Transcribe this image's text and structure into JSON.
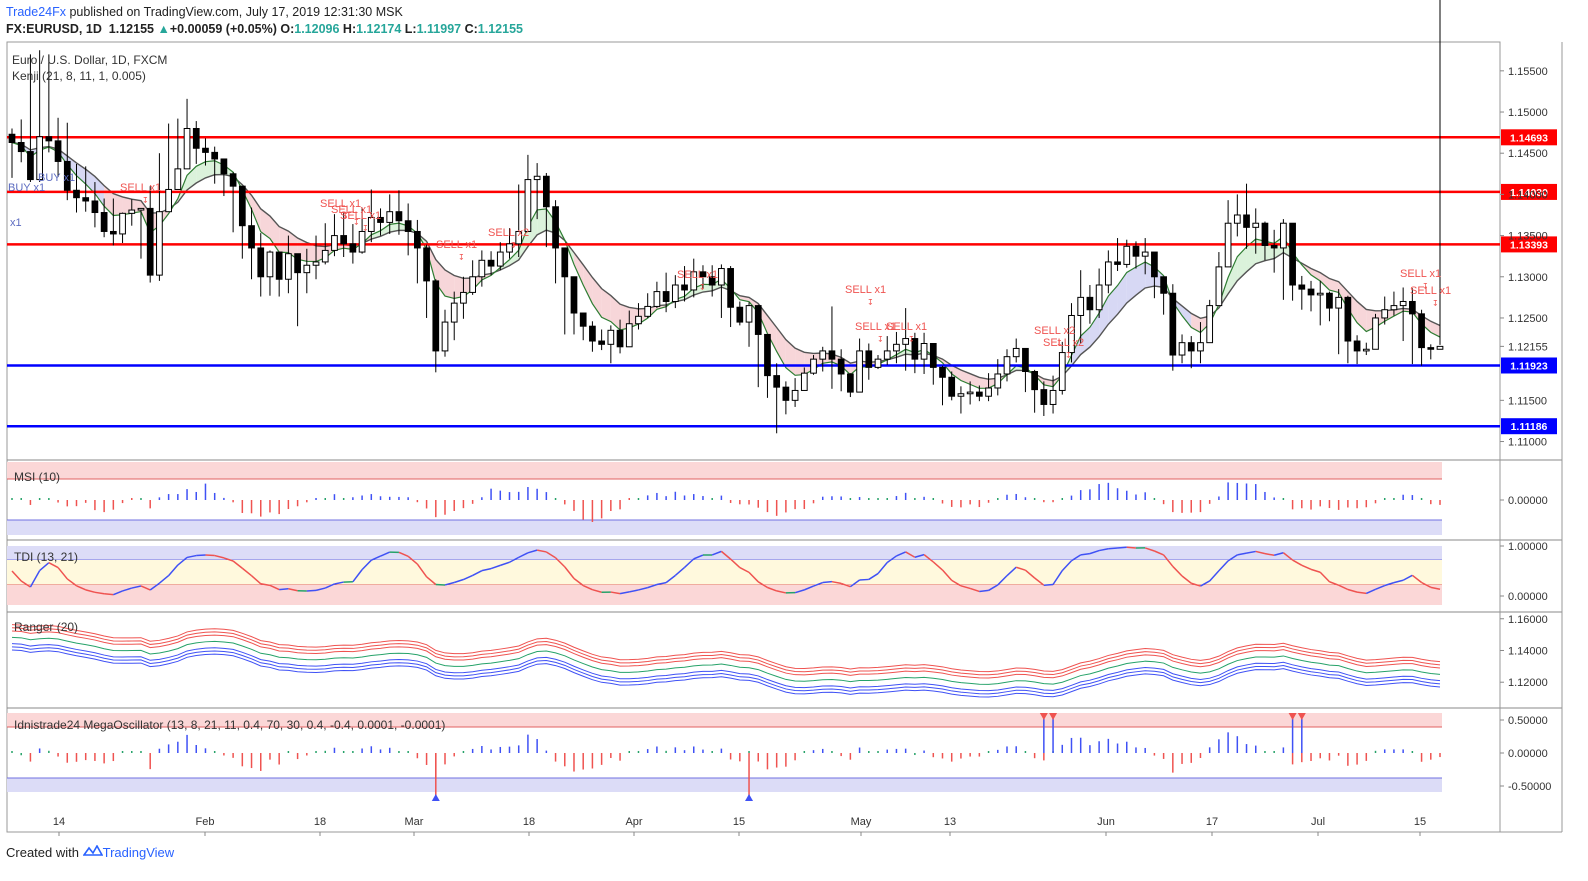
{
  "header": {
    "publisher": "Trade24Fx",
    "published_text": "published on TradingView.com, July 17, 2019 12:31:30 MSK",
    "symbol": "FX:EURUSD, 1D",
    "last": "1.12155",
    "change_arrow": "▲",
    "change": "+0.00059 (+0.05%)",
    "o_label": "O:",
    "o": "1.12096",
    "h_label": "H:",
    "h": "1.12174",
    "l_label": "L:",
    "l": "1.11997",
    "c_label": "C:",
    "c": "1.12155"
  },
  "footer": {
    "created_with": "Created with",
    "brand": "TradingView"
  },
  "colors": {
    "up": "#26a69a",
    "candle_down": "#000000",
    "resistance": "#ff0000",
    "support": "#0000ff",
    "accent": "#2962ff"
  },
  "chart_data": [
    {
      "type": "candlestick",
      "title": "Euro / U.S. Dollar, 1D, FXCM",
      "indicator": "Kenji (21, 8, 11, 1, 0.005)",
      "ylim": [
        1.108,
        1.1585
      ],
      "y_ticks": [
        "1.15500",
        "1.15000",
        "1.14500",
        "1.14000",
        "1.13500",
        "1.13000",
        "1.12500",
        "1.12155",
        "1.11500",
        "1.11000"
      ],
      "x_labels": [
        "14",
        "Feb",
        "18",
        "Mar",
        "18",
        "Apr",
        "15",
        "May",
        "13",
        "Jun",
        "17",
        "Jul",
        "15"
      ],
      "last_price": "1.12155",
      "horizontal_levels": [
        {
          "label": "1.14693",
          "value": 1.14693,
          "color": "#ff0000"
        },
        {
          "label": "1.14030",
          "value": 1.1403,
          "color": "#ff0000"
        },
        {
          "label": "1.13393",
          "value": 1.13393,
          "color": "#ff0000"
        },
        {
          "label": "1.11923",
          "value": 1.11923,
          "color": "#0000ff"
        },
        {
          "label": "1.11186",
          "value": 1.11186,
          "color": "#0000ff"
        }
      ],
      "annotations": [
        {
          "text": "BUY x1",
          "type": "buy"
        },
        {
          "text": "BUY x1",
          "type": "buy"
        },
        {
          "text": "x1",
          "type": "buy"
        },
        {
          "text": "SELL x1",
          "type": "sell"
        },
        {
          "text": "SELL x1",
          "type": "sell"
        },
        {
          "text": "SELL x1",
          "type": "sell"
        },
        {
          "text": "SELL x1",
          "type": "sell"
        },
        {
          "text": "SELL x1",
          "type": "sell"
        },
        {
          "text": "SELL x2",
          "type": "sell"
        },
        {
          "text": "SELL x1",
          "type": "sell"
        },
        {
          "text": "SELL x1",
          "type": "sell"
        },
        {
          "text": "SELL x1",
          "type": "sell"
        },
        {
          "text": "SELL x1",
          "type": "sell"
        },
        {
          "text": "SELL x2",
          "type": "sell"
        },
        {
          "text": "SELL x2",
          "type": "sell"
        },
        {
          "text": "SELL x1",
          "type": "sell"
        },
        {
          "text": "SELL x1",
          "type": "sell"
        }
      ],
      "closes": [
        1.1463,
        1.1452,
        1.1418,
        1.147,
        1.1465,
        1.144,
        1.1405,
        1.1396,
        1.1392,
        1.1378,
        1.1355,
        1.1352,
        1.1377,
        1.1381,
        1.1383,
        1.1302,
        1.1379,
        1.1406,
        1.1431,
        1.148,
        1.1456,
        1.1451,
        1.1443,
        1.1425,
        1.141,
        1.1362,
        1.1335,
        1.13,
        1.133,
        1.1297,
        1.1328,
        1.1305,
        1.1314,
        1.1318,
        1.1332,
        1.135,
        1.134,
        1.133,
        1.1355,
        1.1372,
        1.1366,
        1.1379,
        1.1368,
        1.1355,
        1.1335,
        1.1295,
        1.121,
        1.1245,
        1.1268,
        1.1281,
        1.13,
        1.132,
        1.1313,
        1.133,
        1.134,
        1.1355,
        1.1418,
        1.1422,
        1.1385,
        1.1335,
        1.13,
        1.1256,
        1.124,
        1.1222,
        1.1218,
        1.1235,
        1.1215,
        1.1243,
        1.1252,
        1.1264,
        1.1282,
        1.127,
        1.129,
        1.1284,
        1.1306,
        1.13,
        1.129,
        1.131,
        1.1263,
        1.1245,
        1.1265,
        1.123,
        1.118,
        1.1166,
        1.115,
        1.1162,
        1.1183,
        1.12,
        1.121,
        1.12,
        1.1182,
        1.116,
        1.121,
        1.119,
        1.12,
        1.121,
        1.1218,
        1.1225,
        1.12,
        1.1219,
        1.119,
        1.1178,
        1.1155,
        1.1158,
        1.116,
        1.1155,
        1.1165,
        1.1182,
        1.1203,
        1.1213,
        1.1185,
        1.1163,
        1.1145,
        1.1162,
        1.1208,
        1.1253,
        1.1275,
        1.126,
        1.129,
        1.1318,
        1.1315,
        1.1337,
        1.1325,
        1.133,
        1.13,
        1.128,
        1.1205,
        1.122,
        1.121,
        1.122,
        1.1265,
        1.1312,
        1.1365,
        1.1375,
        1.136,
        1.1365,
        1.1338,
        1.1335,
        1.1365,
        1.129,
        1.1285,
        1.1278,
        1.128,
        1.1262,
        1.1275,
        1.1222,
        1.121,
        1.1212,
        1.125,
        1.126,
        1.1265,
        1.127,
        1.1255,
        1.1214,
        1.1212,
        1.12155
      ],
      "highs": [
        1.148,
        1.1491,
        1.157,
        1.1575,
        1.157,
        1.1493,
        1.1487,
        1.1437,
        1.1434,
        1.1415,
        1.1395,
        1.1395,
        1.1378,
        1.1394,
        1.1383,
        1.141,
        1.145,
        1.1486,
        1.1492,
        1.1516,
        1.1489,
        1.1468,
        1.1458,
        1.1438,
        1.1427,
        1.141,
        1.1384,
        1.1353,
        1.1332,
        1.1327,
        1.135,
        1.132,
        1.1334,
        1.135,
        1.1365,
        1.1376,
        1.1379,
        1.1364,
        1.1384,
        1.1406,
        1.1383,
        1.14,
        1.1405,
        1.1389,
        1.1369,
        1.1339,
        1.1297,
        1.126,
        1.1282,
        1.13,
        1.132,
        1.1332,
        1.1331,
        1.1342,
        1.1359,
        1.1412,
        1.1448,
        1.1438,
        1.1426,
        1.1393,
        1.1335,
        1.13,
        1.1256,
        1.1246,
        1.1236,
        1.1241,
        1.1248,
        1.1259,
        1.1268,
        1.128,
        1.1294,
        1.1305,
        1.1302,
        1.1313,
        1.1322,
        1.1314,
        1.1314,
        1.1315,
        1.1313,
        1.127,
        1.1269,
        1.1266,
        1.123,
        1.1195,
        1.1173,
        1.1177,
        1.119,
        1.1205,
        1.1215,
        1.1264,
        1.1212,
        1.1183,
        1.1225,
        1.1219,
        1.1205,
        1.1228,
        1.1233,
        1.1262,
        1.1232,
        1.1232,
        1.1217,
        1.1192,
        1.1185,
        1.1167,
        1.1173,
        1.1168,
        1.1183,
        1.12,
        1.1212,
        1.1225,
        1.1209,
        1.1187,
        1.1173,
        1.118,
        1.1221,
        1.1268,
        1.1308,
        1.129,
        1.131,
        1.1332,
        1.1347,
        1.1345,
        1.1343,
        1.1347,
        1.133,
        1.1299,
        1.1291,
        1.123,
        1.1228,
        1.1245,
        1.1272,
        1.133,
        1.1393,
        1.14,
        1.1413,
        1.1383,
        1.1367,
        1.1357,
        1.137,
        1.1348,
        1.1301,
        1.1295,
        1.1295,
        1.1282,
        1.1285,
        1.1277,
        1.1229,
        1.122,
        1.1255,
        1.1276,
        1.1282,
        1.1287,
        1.1286,
        1.126,
        1.1218,
        1.12174
      ],
      "lows": [
        1.142,
        1.1439,
        1.1415,
        1.1415,
        1.1451,
        1.1421,
        1.1393,
        1.1378,
        1.1379,
        1.136,
        1.1348,
        1.1338,
        1.1341,
        1.1362,
        1.1322,
        1.1293,
        1.1295,
        1.139,
        1.1419,
        1.1437,
        1.1437,
        1.1435,
        1.1413,
        1.1398,
        1.1354,
        1.1322,
        1.1297,
        1.1276,
        1.1277,
        1.1276,
        1.128,
        1.124,
        1.128,
        1.1297,
        1.1315,
        1.1325,
        1.1324,
        1.1316,
        1.1328,
        1.1342,
        1.135,
        1.1352,
        1.1351,
        1.1326,
        1.1292,
        1.125,
        1.1184,
        1.1203,
        1.1223,
        1.1249,
        1.1278,
        1.1288,
        1.1302,
        1.1308,
        1.1322,
        1.1324,
        1.1389,
        1.137,
        1.1336,
        1.1292,
        1.123,
        1.123,
        1.1223,
        1.1209,
        1.1211,
        1.1195,
        1.1207,
        1.1218,
        1.1236,
        1.125,
        1.1262,
        1.1257,
        1.1262,
        1.127,
        1.1275,
        1.1286,
        1.1276,
        1.125,
        1.1239,
        1.1241,
        1.1215,
        1.1166,
        1.1153,
        1.111,
        1.1133,
        1.1142,
        1.1164,
        1.1181,
        1.1185,
        1.1164,
        1.1161,
        1.1154,
        1.117,
        1.1175,
        1.1188,
        1.1193,
        1.1195,
        1.1186,
        1.1183,
        1.1182,
        1.1169,
        1.1144,
        1.115,
        1.1134,
        1.1145,
        1.1149,
        1.1149,
        1.1156,
        1.1173,
        1.1196,
        1.116,
        1.1135,
        1.1131,
        1.1134,
        1.1157,
        1.1196,
        1.1219,
        1.1243,
        1.125,
        1.128,
        1.1307,
        1.1311,
        1.131,
        1.1303,
        1.1274,
        1.1254,
        1.1186,
        1.1195,
        1.1189,
        1.1195,
        1.1237,
        1.1299,
        1.1338,
        1.1349,
        1.1334,
        1.1328,
        1.132,
        1.1305,
        1.1272,
        1.1271,
        1.126,
        1.1258,
        1.1241,
        1.1246,
        1.1206,
        1.1195,
        1.1194,
        1.1205,
        1.1235,
        1.1242,
        1.1253,
        1.1222,
        1.1194,
        1.1192,
        1.11997
      ]
    },
    {
      "type": "histogram",
      "title": "MSI (10)",
      "y_ticks": [
        "0.00000"
      ]
    },
    {
      "type": "line",
      "title": "TDI (13, 21)",
      "y_ticks": [
        "1.00000",
        "0.00000"
      ]
    },
    {
      "type": "line",
      "title": "Ranger (20)",
      "y_ticks": [
        "1.16000",
        "1.14000",
        "1.12000"
      ]
    },
    {
      "type": "histogram",
      "title": "Idnistrade24 MegaOscillator (13, 8, 21, 11, 0.4, 70, 30, 0.4, -0.4, 0.0001, -0.0001)",
      "y_ticks": [
        "0.50000",
        "0.00000",
        "-0.50000"
      ]
    }
  ]
}
